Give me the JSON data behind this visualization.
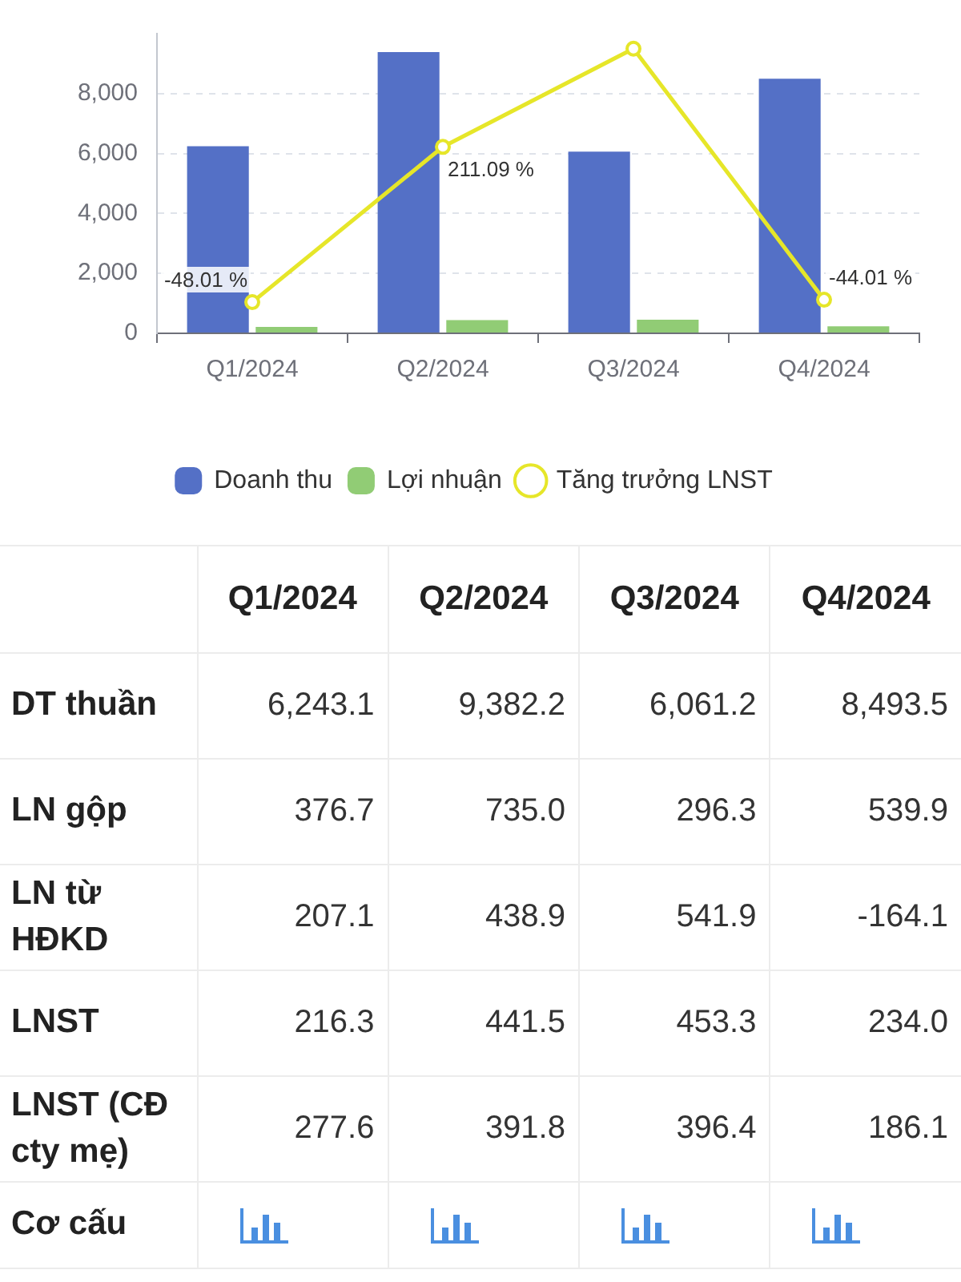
{
  "chart_data": [
    {
      "type": "bar",
      "categories": [
        "Q1/2024",
        "Q2/2024",
        "Q3/2024",
        "Q4/2024"
      ],
      "series": [
        {
          "name": "Doanh thu",
          "color": "#5470c6",
          "values": [
            6243.1,
            9382.2,
            6061.2,
            8493.5
          ]
        },
        {
          "name": "Lợi nhuận",
          "color": "#91cc75",
          "values": [
            216.3,
            441.5,
            453.3,
            234.0
          ]
        },
        {
          "name": "Tăng trưởng LNST",
          "type": "line",
          "axis": "y2",
          "color": "#e6e629",
          "values": [
            -48.01,
            211.09,
            375,
            -44.01
          ],
          "value_labels": [
            "-48.01 %",
            "211.09 %",
            null,
            "-44.01 %"
          ]
        }
      ],
      "ylim": [
        0,
        10000
      ],
      "yticks": [
        0,
        {
          "value": 2000,
          "label": "2,000"
        },
        {
          "value": 4000,
          "label": "4,000"
        },
        {
          "value": 6000,
          "label": "6,000"
        },
        {
          "value": 8000,
          "label": "8,000"
        }
      ],
      "grid": "y",
      "legend": "bottom",
      "marker": "circle"
    },
    {
      "type": "other",
      "categories": [
        "Q1/2024",
        "Q2/2024",
        "Q3/2024",
        "Q4/2024"
      ],
      "series": [
        {
          "name": "DT thuần",
          "values": [
            6243.1,
            9382.2,
            6061.2,
            8493.5
          ],
          "value_labels": [
            "6,243.1",
            "9,382.2",
            "6,061.2",
            "8,493.5"
          ]
        },
        {
          "name": "LN gộp",
          "values": [
            376.7,
            735.0,
            296.3,
            539.9
          ],
          "value_labels": [
            "376.7",
            "735.0",
            "296.3",
            "539.9"
          ]
        },
        {
          "name": "LN từ HĐKD",
          "values": [
            207.1,
            438.9,
            541.9,
            -164.1
          ],
          "value_labels": [
            "207.1",
            "438.9",
            "541.9",
            "-164.1"
          ]
        },
        {
          "name": "LNST",
          "values": [
            216.3,
            441.5,
            453.3,
            234.0
          ],
          "value_labels": [
            "216.3",
            "441.5",
            "453.3",
            "234.0"
          ]
        },
        {
          "name": "LNST (CĐ cty mẹ)",
          "values": [
            277.6,
            391.8,
            396.4,
            186.1
          ],
          "value_labels": [
            "277.6",
            "391.8",
            "396.4",
            "186.1"
          ]
        }
      ],
      "annotations": [
        "Cơ cấu"
      ]
    }
  ]
}
